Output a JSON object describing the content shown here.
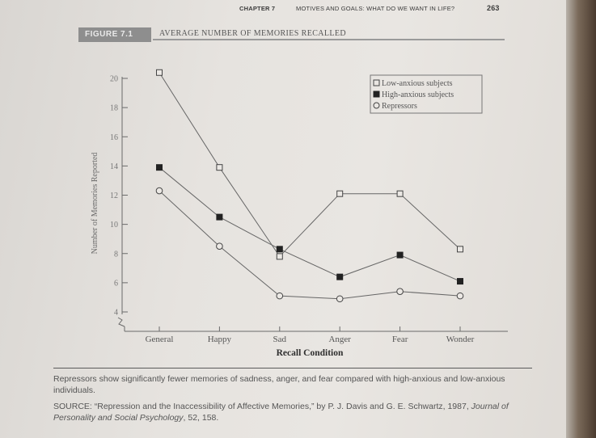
{
  "running_head": {
    "chapter": "CHAPTER 7",
    "title": "MOTIVES AND GOALS: WHAT DO WE WANT IN LIFE?",
    "page_number": "263"
  },
  "figure": {
    "label": "FIGURE 7.1",
    "title": "AVERAGE NUMBER OF MEMORIES RECALLED"
  },
  "chart_data": {
    "type": "line",
    "title": "AVERAGE NUMBER OF MEMORIES RECALLED",
    "xlabel": "Recall Condition",
    "ylabel": "Number of Memories Reported",
    "categories": [
      "General",
      "Happy",
      "Sad",
      "Anger",
      "Fear",
      "Wonder"
    ],
    "yticks": [
      4,
      6,
      8,
      10,
      12,
      14,
      16,
      18,
      20
    ],
    "ylim": [
      4,
      20
    ],
    "legend_position": "top-right",
    "grid": false,
    "series": [
      {
        "name": "Low-anxious subjects",
        "marker": "open-square",
        "values": [
          20.4,
          13.9,
          7.8,
          12.1,
          12.1,
          8.3
        ]
      },
      {
        "name": "High-anxious subjects",
        "marker": "filled-square",
        "values": [
          13.9,
          10.5,
          8.3,
          6.4,
          7.9,
          6.1
        ]
      },
      {
        "name": "Repressors",
        "marker": "open-circle",
        "values": [
          12.3,
          8.5,
          5.1,
          4.9,
          5.4,
          5.1
        ]
      }
    ]
  },
  "caption": "Repressors show significantly fewer memories of sadness, anger, and fear compared with high-anxious and low-anxious individuals.",
  "source": {
    "prefix": "SOURCE: “Repression and the Inaccessibility of Affective Memories,” by P. J. Davis and G. E. Schwartz, 1987,",
    "journal": "Journal of Personality and Social Psychology",
    "suffix": ", 52, 158."
  }
}
